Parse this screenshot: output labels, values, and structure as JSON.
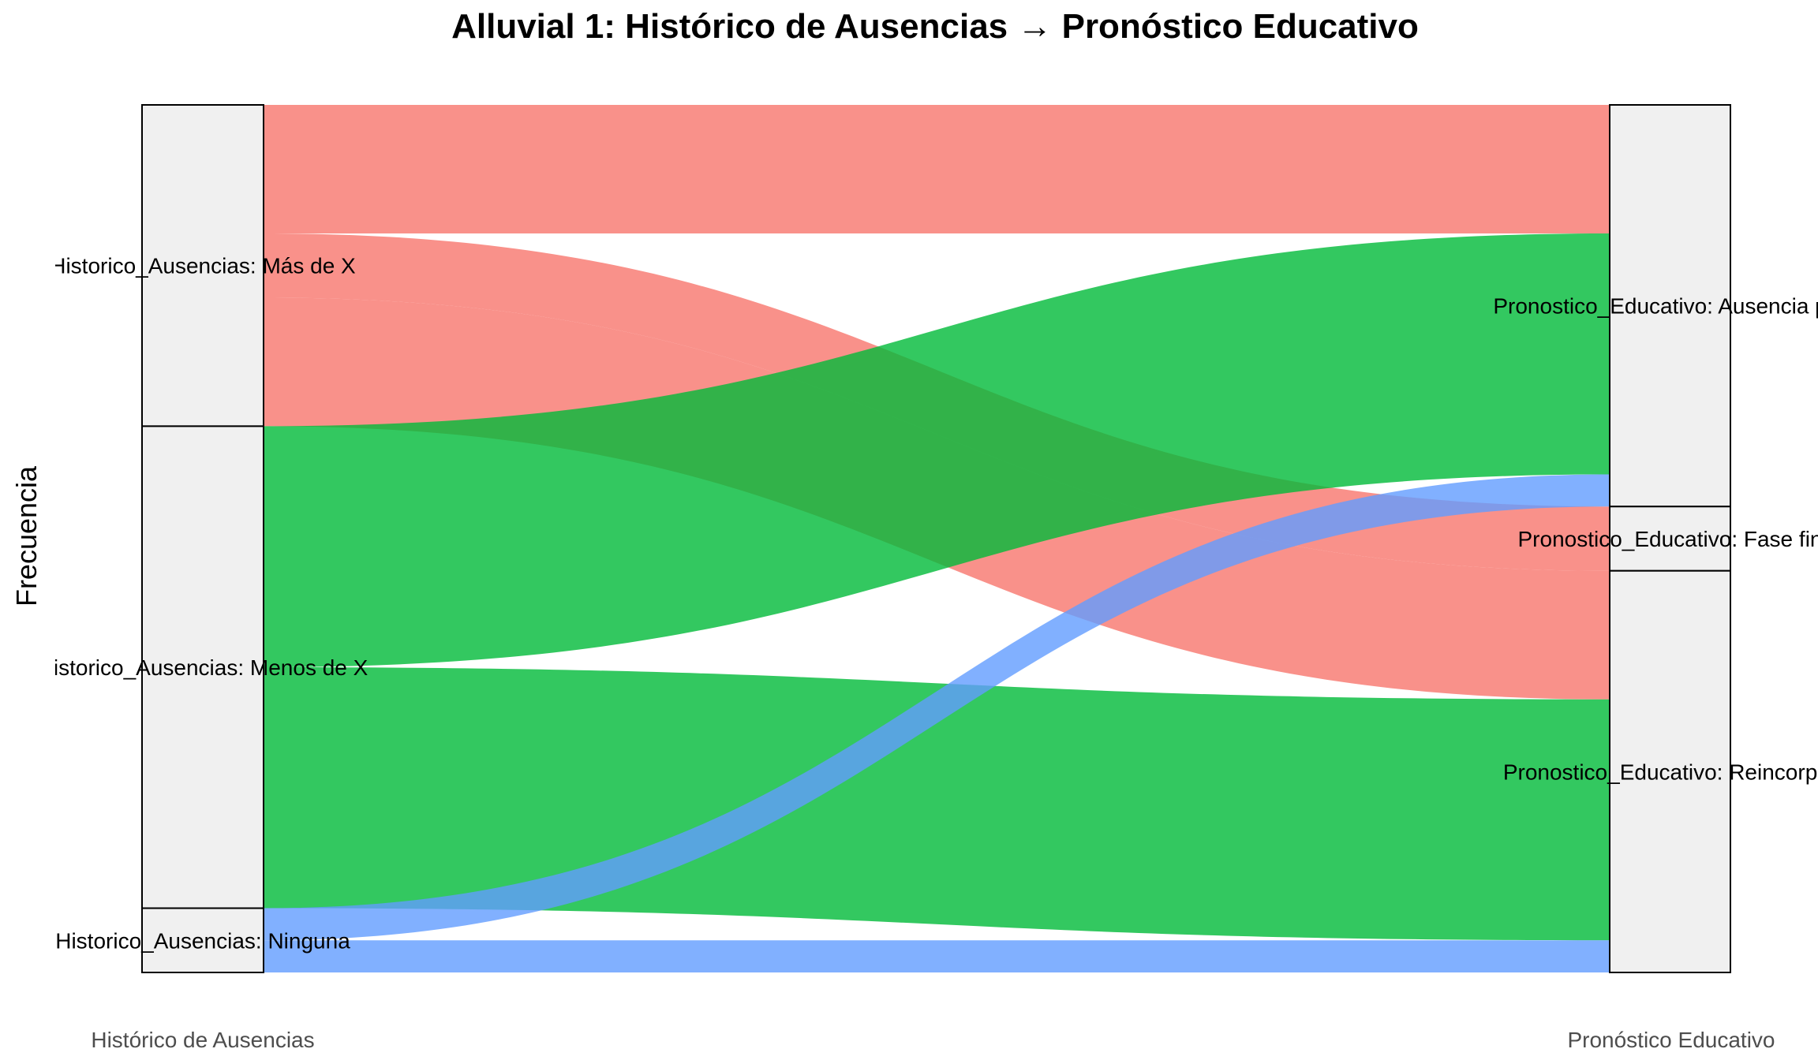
{
  "chart_data": {
    "type": "alluvial",
    "title": "Alluvial 1: Histórico de Ausencias → Pronóstico Educativo",
    "ylabel": "Frecuencia",
    "axes": [
      "Histórico de Ausencias",
      "Pronóstico Educativo"
    ],
    "strata": {
      "left": [
        {
          "name": "Más de X",
          "label": "Historico_Ausencias: Más de X",
          "value": 20
        },
        {
          "name": "Menos de X",
          "label": "Historico_Ausencias: Menos de X",
          "value": 30
        },
        {
          "name": "Ninguna",
          "label": "Historico_Ausencias: Ninguna",
          "value": 4
        }
      ],
      "right": [
        {
          "name": "Ausencia pro",
          "label": "Pronostico_Educativo: Ausencia pro",
          "value": 25
        },
        {
          "name": "Fase fin",
          "label": "Pronostico_Educativo: Fase fin",
          "value": 4
        },
        {
          "name": "Reincorpor",
          "label": "Pronostico_Educativo: Reincorpor",
          "value": 25
        }
      ]
    },
    "flows": [
      {
        "from": "Más de X",
        "to": "Ausencia pro",
        "value": 8,
        "color": "#f8766d"
      },
      {
        "from": "Más de X",
        "to": "Fase fin",
        "value": 4,
        "color": "#f8766d"
      },
      {
        "from": "Más de X",
        "to": "Reincorpor",
        "value": 8,
        "color": "#f8766d"
      },
      {
        "from": "Menos de X",
        "to": "Ausencia pro",
        "value": 15,
        "color": "#00ba38"
      },
      {
        "from": "Menos de X",
        "to": "Reincorpor",
        "value": 15,
        "color": "#00ba38"
      },
      {
        "from": "Ninguna",
        "to": "Ausencia pro",
        "value": 2,
        "color": "#619cff"
      },
      {
        "from": "Ninguna",
        "to": "Reincorpor",
        "value": 2,
        "color": "#619cff"
      }
    ],
    "colors": {
      "Más de X": "#f8766d",
      "Menos de X": "#00ba38",
      "Ninguna": "#619cff"
    },
    "legend": "none",
    "grid": false
  }
}
